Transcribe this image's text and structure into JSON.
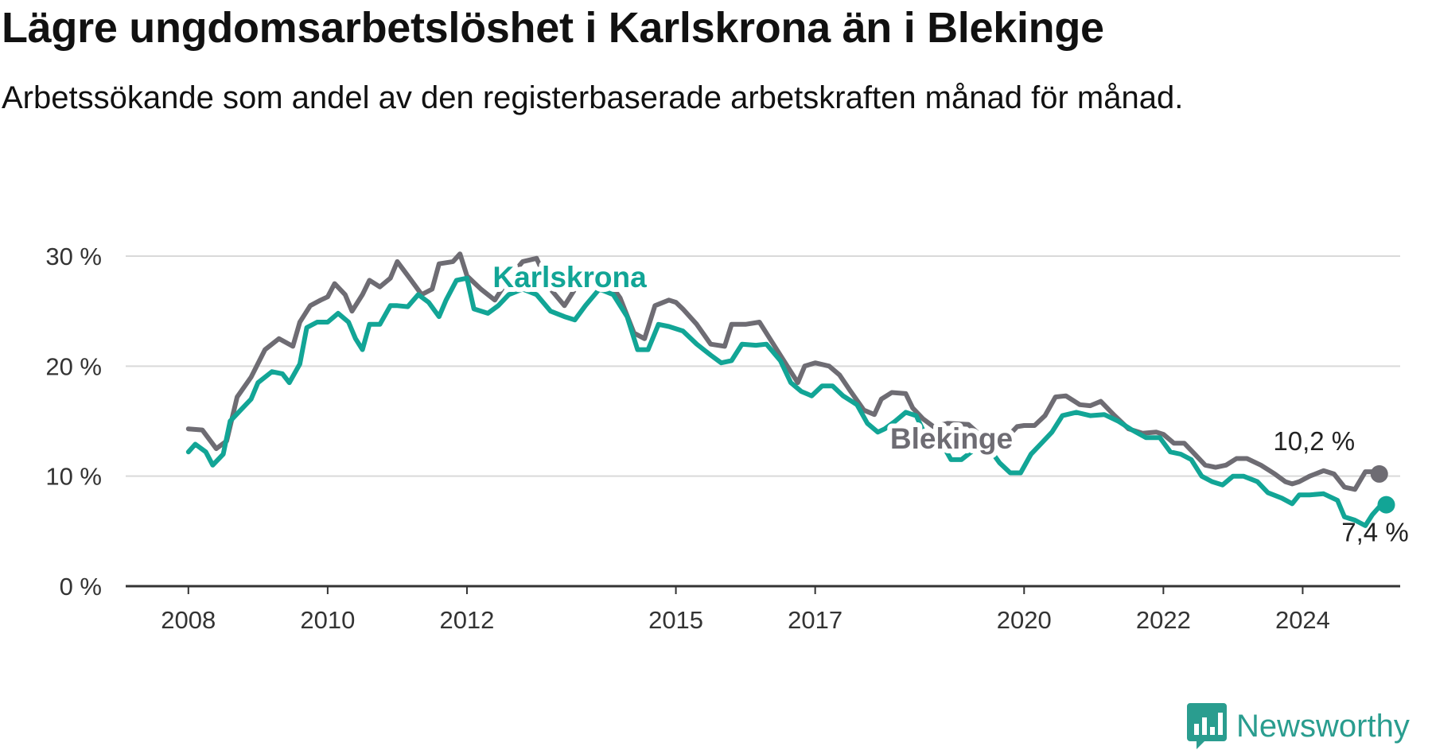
{
  "title": "Lägre ungdomsarbetslöshet i Karlskrona än i Blekinge",
  "subtitle": "Arbetssökande som andel av den registerbaserade arbetskraften månad för månad.",
  "brand": {
    "name": "Newsworthy",
    "color": "#2a9d8f"
  },
  "colors": {
    "Karlskrona": "#12a596",
    "Blekinge": "#6e6c73",
    "grid": "#d9d9d9",
    "axis": "#333333"
  },
  "chart_data": {
    "type": "line",
    "title": "Lägre ungdomsarbetslöshet i Karlskrona än i Blekinge",
    "xlabel": "",
    "ylabel": "",
    "y_ticks": [
      0,
      10,
      20,
      30
    ],
    "y_tick_labels": [
      "0 %",
      "10 %",
      "20 %",
      "30 %"
    ],
    "x_ticks": [
      2008,
      2010,
      2012,
      2015,
      2017,
      2020,
      2022,
      2024
    ],
    "x_tick_labels": [
      "2008",
      "2010",
      "2012",
      "2015",
      "2017",
      "2020",
      "2022",
      "2024"
    ],
    "xlim": [
      2007.1,
      2025.4
    ],
    "ylim": [
      0,
      30
    ],
    "grid": true,
    "legend": "inline labels on lines",
    "series": [
      {
        "name": "Blekinge",
        "end_label": "10,2 %",
        "points": [
          [
            2008.0,
            14.3
          ],
          [
            2008.2,
            14.2
          ],
          [
            2008.4,
            12.5
          ],
          [
            2008.55,
            13.2
          ],
          [
            2008.7,
            17.2
          ],
          [
            2008.9,
            19.0
          ],
          [
            2009.1,
            21.5
          ],
          [
            2009.3,
            22.5
          ],
          [
            2009.5,
            21.8
          ],
          [
            2009.6,
            24.0
          ],
          [
            2009.75,
            25.5
          ],
          [
            2009.9,
            26.0
          ],
          [
            2010.0,
            26.3
          ],
          [
            2010.1,
            27.5
          ],
          [
            2010.25,
            26.5
          ],
          [
            2010.35,
            25.0
          ],
          [
            2010.5,
            26.5
          ],
          [
            2010.6,
            27.8
          ],
          [
            2010.75,
            27.2
          ],
          [
            2010.9,
            28.0
          ],
          [
            2011.0,
            29.5
          ],
          [
            2011.2,
            27.8
          ],
          [
            2011.35,
            26.5
          ],
          [
            2011.5,
            27.0
          ],
          [
            2011.6,
            29.3
          ],
          [
            2011.8,
            29.5
          ],
          [
            2011.9,
            30.2
          ],
          [
            2012.0,
            28.2
          ],
          [
            2012.2,
            27.0
          ],
          [
            2012.4,
            26.0
          ],
          [
            2012.6,
            28.0
          ],
          [
            2012.8,
            29.5
          ],
          [
            2013.0,
            29.8
          ],
          [
            2013.2,
            27.0
          ],
          [
            2013.4,
            25.5
          ],
          [
            2013.6,
            27.5
          ],
          [
            2013.8,
            28.5
          ],
          [
            2014.0,
            28.0
          ],
          [
            2014.2,
            26.2
          ],
          [
            2014.4,
            23.0
          ],
          [
            2014.55,
            22.5
          ],
          [
            2014.7,
            25.5
          ],
          [
            2014.9,
            26.0
          ],
          [
            2015.0,
            25.8
          ],
          [
            2015.1,
            25.2
          ],
          [
            2015.3,
            23.8
          ],
          [
            2015.5,
            22.0
          ],
          [
            2015.7,
            21.8
          ],
          [
            2015.8,
            23.8
          ],
          [
            2016.0,
            23.8
          ],
          [
            2016.2,
            24.0
          ],
          [
            2016.4,
            22.0
          ],
          [
            2016.6,
            20.0
          ],
          [
            2016.75,
            18.5
          ],
          [
            2016.85,
            20.0
          ],
          [
            2017.0,
            20.3
          ],
          [
            2017.2,
            20.0
          ],
          [
            2017.35,
            19.2
          ],
          [
            2017.5,
            17.8
          ],
          [
            2017.7,
            16.0
          ],
          [
            2017.85,
            15.6
          ],
          [
            2017.95,
            17.0
          ],
          [
            2018.1,
            17.6
          ],
          [
            2018.3,
            17.5
          ],
          [
            2018.4,
            16.2
          ],
          [
            2018.55,
            15.2
          ],
          [
            2018.7,
            14.5
          ],
          [
            2018.9,
            14.8
          ],
          [
            2019.2,
            14.7
          ],
          [
            2019.5,
            13.0
          ],
          [
            2019.6,
            12.6
          ],
          [
            2019.75,
            13.5
          ],
          [
            2019.9,
            14.5
          ],
          [
            2020.0,
            14.6
          ],
          [
            2020.15,
            14.6
          ],
          [
            2020.3,
            15.5
          ],
          [
            2020.45,
            17.2
          ],
          [
            2020.6,
            17.3
          ],
          [
            2020.8,
            16.5
          ],
          [
            2020.95,
            16.4
          ],
          [
            2021.1,
            16.8
          ],
          [
            2021.3,
            15.5
          ],
          [
            2021.5,
            14.3
          ],
          [
            2021.7,
            13.9
          ],
          [
            2021.9,
            14.0
          ],
          [
            2022.0,
            13.8
          ],
          [
            2022.15,
            13.0
          ],
          [
            2022.3,
            13.0
          ],
          [
            2022.45,
            12.0
          ],
          [
            2022.6,
            11.0
          ],
          [
            2022.75,
            10.8
          ],
          [
            2022.9,
            11.0
          ],
          [
            2023.05,
            11.6
          ],
          [
            2023.2,
            11.6
          ],
          [
            2023.4,
            11.0
          ],
          [
            2023.6,
            10.2
          ],
          [
            2023.75,
            9.5
          ],
          [
            2023.85,
            9.3
          ],
          [
            2023.95,
            9.5
          ],
          [
            2024.1,
            10.0
          ],
          [
            2024.3,
            10.5
          ],
          [
            2024.45,
            10.2
          ],
          [
            2024.6,
            9.0
          ],
          [
            2024.75,
            8.8
          ],
          [
            2024.9,
            10.4
          ],
          [
            2025.0,
            10.4
          ],
          [
            2025.1,
            10.2
          ]
        ]
      },
      {
        "name": "Karlskrona",
        "end_label": "7,4 %",
        "points": [
          [
            2008.0,
            12.2
          ],
          [
            2008.1,
            12.9
          ],
          [
            2008.25,
            12.2
          ],
          [
            2008.35,
            11.0
          ],
          [
            2008.5,
            12.0
          ],
          [
            2008.6,
            15.0
          ],
          [
            2008.75,
            16.0
          ],
          [
            2008.9,
            17.0
          ],
          [
            2009.0,
            18.5
          ],
          [
            2009.2,
            19.5
          ],
          [
            2009.35,
            19.3
          ],
          [
            2009.45,
            18.5
          ],
          [
            2009.6,
            20.2
          ],
          [
            2009.7,
            23.5
          ],
          [
            2009.85,
            24.0
          ],
          [
            2010.0,
            24.0
          ],
          [
            2010.15,
            24.8
          ],
          [
            2010.3,
            24.0
          ],
          [
            2010.4,
            22.5
          ],
          [
            2010.5,
            21.5
          ],
          [
            2010.6,
            23.8
          ],
          [
            2010.75,
            23.8
          ],
          [
            2010.9,
            25.5
          ],
          [
            2011.0,
            25.5
          ],
          [
            2011.15,
            25.4
          ],
          [
            2011.3,
            26.5
          ],
          [
            2011.45,
            25.8
          ],
          [
            2011.6,
            24.5
          ],
          [
            2011.7,
            26.0
          ],
          [
            2011.85,
            27.8
          ],
          [
            2012.0,
            28.0
          ],
          [
            2012.1,
            25.2
          ],
          [
            2012.3,
            24.8
          ],
          [
            2012.45,
            25.5
          ],
          [
            2012.6,
            26.5
          ],
          [
            2012.8,
            27.0
          ],
          [
            2013.0,
            26.5
          ],
          [
            2013.2,
            25.0
          ],
          [
            2013.4,
            24.5
          ],
          [
            2013.55,
            24.2
          ],
          [
            2013.7,
            25.5
          ],
          [
            2013.9,
            27.0
          ],
          [
            2014.1,
            26.5
          ],
          [
            2014.3,
            24.5
          ],
          [
            2014.45,
            21.5
          ],
          [
            2014.6,
            21.5
          ],
          [
            2014.75,
            23.8
          ],
          [
            2014.9,
            23.6
          ],
          [
            2015.1,
            23.2
          ],
          [
            2015.3,
            22.0
          ],
          [
            2015.5,
            21.0
          ],
          [
            2015.65,
            20.3
          ],
          [
            2015.8,
            20.5
          ],
          [
            2015.95,
            22.0
          ],
          [
            2016.15,
            21.9
          ],
          [
            2016.3,
            22.0
          ],
          [
            2016.5,
            20.5
          ],
          [
            2016.65,
            18.5
          ],
          [
            2016.8,
            17.7
          ],
          [
            2016.95,
            17.3
          ],
          [
            2017.1,
            18.2
          ],
          [
            2017.25,
            18.2
          ],
          [
            2017.4,
            17.3
          ],
          [
            2017.6,
            16.5
          ],
          [
            2017.75,
            14.8
          ],
          [
            2017.9,
            14.0
          ],
          [
            2018.0,
            14.3
          ],
          [
            2018.15,
            15.0
          ],
          [
            2018.3,
            15.8
          ],
          [
            2018.45,
            15.5
          ],
          [
            2018.6,
            13.5
          ],
          [
            2018.8,
            13.2
          ],
          [
            2018.95,
            11.5
          ],
          [
            2019.1,
            11.5
          ],
          [
            2019.3,
            12.5
          ],
          [
            2019.5,
            12.5
          ],
          [
            2019.65,
            11.2
          ],
          [
            2019.8,
            10.3
          ],
          [
            2019.95,
            10.3
          ],
          [
            2020.1,
            12.0
          ],
          [
            2020.25,
            13.0
          ],
          [
            2020.4,
            14.0
          ],
          [
            2020.55,
            15.5
          ],
          [
            2020.75,
            15.8
          ],
          [
            2020.95,
            15.5
          ],
          [
            2021.15,
            15.6
          ],
          [
            2021.35,
            15.0
          ],
          [
            2021.55,
            14.2
          ],
          [
            2021.75,
            13.5
          ],
          [
            2021.95,
            13.5
          ],
          [
            2022.1,
            12.2
          ],
          [
            2022.25,
            12.0
          ],
          [
            2022.4,
            11.5
          ],
          [
            2022.55,
            10.0
          ],
          [
            2022.7,
            9.5
          ],
          [
            2022.85,
            9.2
          ],
          [
            2023.0,
            10.0
          ],
          [
            2023.15,
            10.0
          ],
          [
            2023.35,
            9.5
          ],
          [
            2023.5,
            8.5
          ],
          [
            2023.7,
            8.0
          ],
          [
            2023.85,
            7.5
          ],
          [
            2023.95,
            8.3
          ],
          [
            2024.1,
            8.3
          ],
          [
            2024.3,
            8.4
          ],
          [
            2024.5,
            7.8
          ],
          [
            2024.6,
            6.3
          ],
          [
            2024.75,
            6.0
          ],
          [
            2024.9,
            5.5
          ],
          [
            2025.0,
            6.5
          ],
          [
            2025.1,
            7.2
          ],
          [
            2025.2,
            7.4
          ]
        ]
      }
    ]
  }
}
